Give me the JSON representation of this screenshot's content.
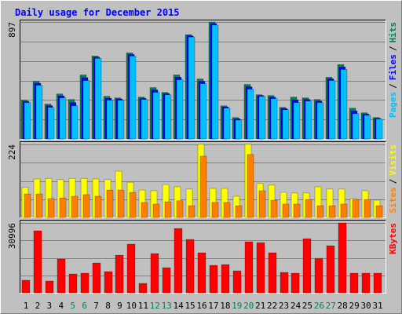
{
  "chart_data": [
    {
      "type": "bar",
      "title": "Daily usage for December 2015",
      "ylim": [
        0,
        897
      ],
      "yticks": [
        897
      ],
      "separator": "/",
      "series": [
        {
          "name": "Hits",
          "color": "#00805c",
          "values": [
            297,
            442,
            267,
            345,
            303,
            491,
            636,
            327,
            315,
            660,
            321,
            394,
            357,
            491,
            800,
            460,
            897,
            254,
            164,
            418,
            339,
            333,
            242,
            321,
            315,
            303,
            473,
            570,
            236,
            200,
            164
          ]
        },
        {
          "name": "Files",
          "color": "#0000ff",
          "values": [
            288,
            427,
            255,
            330,
            279,
            470,
            627,
            312,
            306,
            648,
            312,
            376,
            348,
            473,
            791,
            442,
            885,
            245,
            155,
            400,
            333,
            321,
            233,
            300,
            303,
            291,
            461,
            552,
            215,
            191,
            158
          ]
        },
        {
          "name": "Pages",
          "color": "#00c0ff",
          "values": [
            279,
            412,
            242,
            315,
            254,
            448,
            618,
            297,
            297,
            636,
            303,
            357,
            339,
            454,
            782,
            424,
            873,
            236,
            145,
            382,
            327,
            309,
            224,
            279,
            291,
            279,
            448,
            533,
            194,
            182,
            152
          ]
        }
      ]
    },
    {
      "type": "bar",
      "ylim": [
        0,
        224
      ],
      "yticks": [
        224
      ],
      "separator": "/",
      "series": [
        {
          "name": "Visits",
          "color": "#ffff00",
          "values": [
            92,
            118,
            120,
            116,
            120,
            120,
            118,
            116,
            142,
            108,
            84,
            82,
            101,
            94,
            87,
            224,
            89,
            89,
            65,
            224,
            104,
            99,
            77,
            75,
            75,
            94,
            87,
            87,
            58,
            82,
            53
          ]
        },
        {
          "name": "Sites",
          "color": "#ff8000",
          "values": [
            72,
            72,
            58,
            60,
            65,
            70,
            65,
            84,
            84,
            77,
            46,
            41,
            48,
            51,
            36,
            188,
            46,
            46,
            36,
            193,
            82,
            53,
            41,
            41,
            55,
            36,
            36,
            41,
            55,
            55,
            36
          ]
        }
      ]
    },
    {
      "type": "bar",
      "ylim": [
        0,
        30996
      ],
      "yticks": [
        30996
      ],
      "categories": [
        "1",
        "2",
        "3",
        "4",
        "5",
        "6",
        "7",
        "8",
        "9",
        "10",
        "11",
        "12",
        "13",
        "14",
        "15",
        "16",
        "17",
        "18",
        "19",
        "20",
        "21",
        "22",
        "23",
        "24",
        "25",
        "26",
        "27",
        "28",
        "29",
        "30",
        "31"
      ],
      "label_colors": [
        "#000000",
        "#000000",
        "#000000",
        "#000000",
        "#00805c",
        "#00805c",
        "#000000",
        "#000000",
        "#000000",
        "#000000",
        "#000000",
        "#00805c",
        "#00805c",
        "#000000",
        "#000000",
        "#000000",
        "#000000",
        "#000000",
        "#00805c",
        "#00805c",
        "#000000",
        "#000000",
        "#000000",
        "#000000",
        "#000000",
        "#00805c",
        "#00805c",
        "#000000",
        "#000000",
        "#000000",
        "#000000"
      ],
      "series": [
        {
          "name": "KBytes",
          "color": "#ff0000",
          "values": [
            5570,
            27500,
            5220,
            14960,
            8350,
            8700,
            13220,
            9400,
            16700,
            21580,
            4180,
            17400,
            11140,
            28540,
            23660,
            17750,
            12180,
            12530,
            9740,
            22620,
            22270,
            17750,
            9050,
            8700,
            24010,
            15310,
            20880,
            30996,
            8700,
            8700,
            8700
          ]
        }
      ]
    }
  ]
}
